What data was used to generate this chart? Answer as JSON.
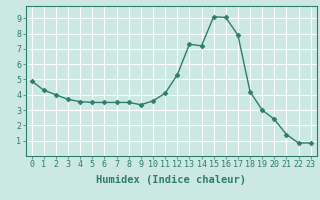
{
  "x": [
    0,
    1,
    2,
    3,
    4,
    5,
    6,
    7,
    8,
    9,
    10,
    11,
    12,
    13,
    14,
    15,
    16,
    17,
    18,
    19,
    20,
    21,
    22,
    23
  ],
  "y": [
    4.9,
    4.3,
    4.0,
    3.7,
    3.55,
    3.5,
    3.5,
    3.5,
    3.5,
    3.35,
    3.6,
    4.1,
    5.3,
    7.3,
    7.2,
    9.1,
    9.05,
    7.9,
    4.2,
    3.0,
    2.4,
    1.4,
    0.85,
    0.85
  ],
  "line_color": "#2d7d6e",
  "marker": "D",
  "marker_size": 2.5,
  "bg_color": "#cce8e3",
  "grid_color": "#ffffff",
  "xlabel": "Humidex (Indice chaleur)",
  "xlim": [
    -0.5,
    23.5
  ],
  "ylim": [
    0,
    9.8
  ],
  "yticks": [
    1,
    2,
    3,
    4,
    5,
    6,
    7,
    8,
    9
  ],
  "xticks": [
    0,
    1,
    2,
    3,
    4,
    5,
    6,
    7,
    8,
    9,
    10,
    11,
    12,
    13,
    14,
    15,
    16,
    17,
    18,
    19,
    20,
    21,
    22,
    23
  ],
  "tick_fontsize": 6,
  "xlabel_fontsize": 7.5,
  "linewidth": 1.0
}
